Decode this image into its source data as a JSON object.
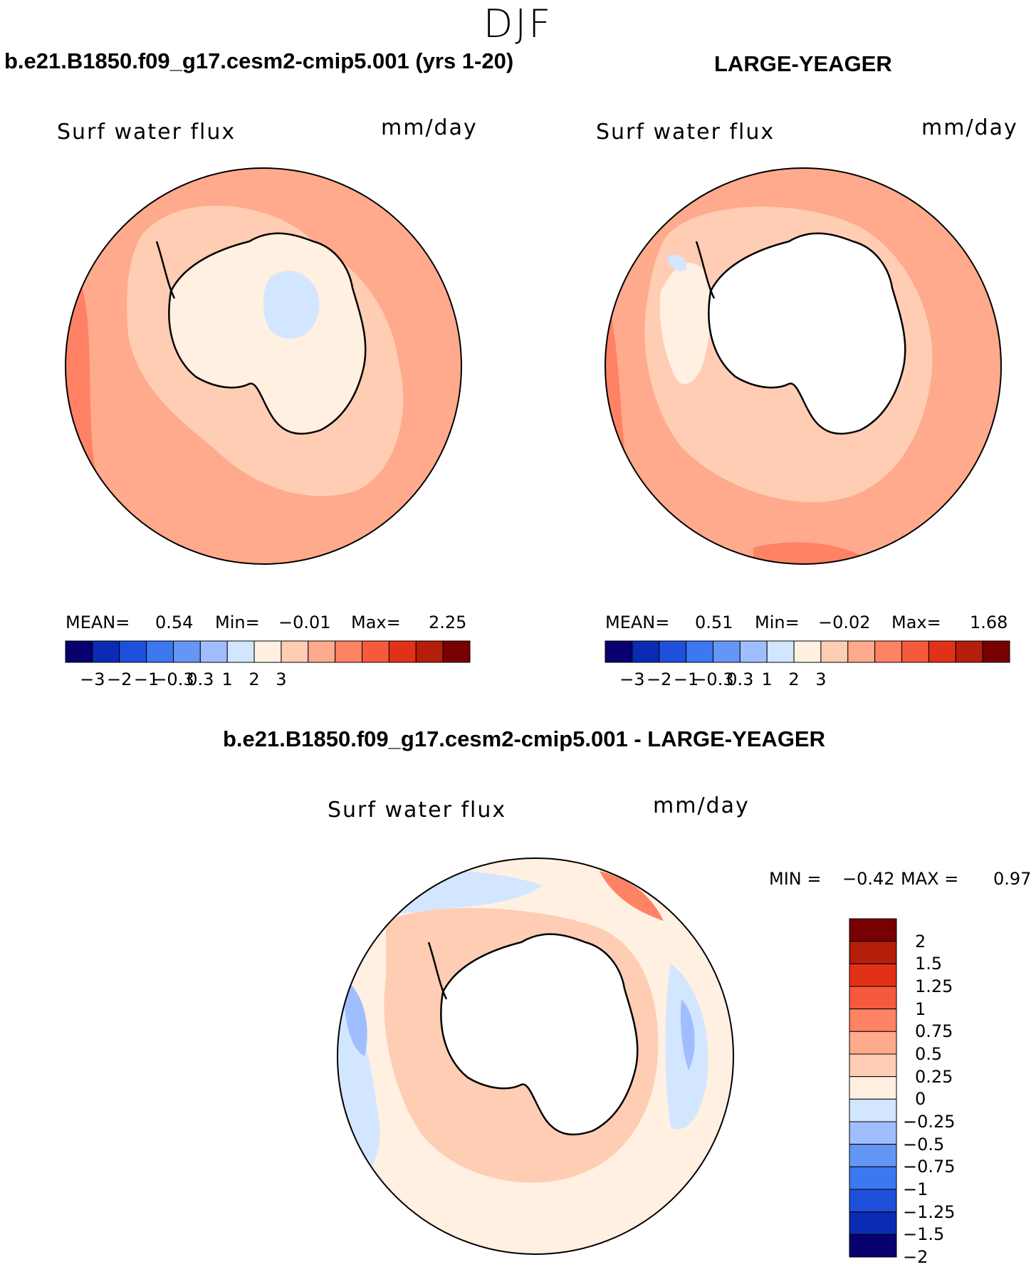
{
  "season": "DJF",
  "panels": [
    {
      "title": "b.e21.B1850.f09_g17.cesm2-cmip5.001 (yrs 1-20)",
      "variable_label": "Surf water flux",
      "units": "mm/day",
      "stats": {
        "mean_label": "MEAN=",
        "mean": "0.54",
        "min_label": "Min=",
        "min": "−0.01",
        "max_label": "Max=",
        "max": "2.25"
      },
      "colorbar_ticks": [
        "−3",
        "−2",
        "−1",
        "−0.3",
        "0.3",
        "1",
        "2",
        "3"
      ]
    },
    {
      "title": "LARGE-YEAGER",
      "variable_label": "Surf water flux",
      "units": "mm/day",
      "stats": {
        "mean_label": "MEAN=",
        "mean": "0.51",
        "min_label": "Min=",
        "min": "−0.02",
        "max_label": "Max=",
        "max": "1.68"
      },
      "colorbar_ticks": [
        "−3",
        "−2",
        "−1",
        "−0.3",
        "0.3",
        "1",
        "2",
        "3"
      ]
    },
    {
      "title": "b.e21.B1850.f09_g17.cesm2-cmip5.001 - LARGE-YEAGER",
      "variable_label": "Surf water flux",
      "units": "mm/day",
      "stats": {
        "min_label": "MIN =",
        "min": "−0.42",
        "max_label": "MAX =",
        "max": "0.97"
      },
      "colorbar_ticks": [
        "2",
        "1.5",
        "1.25",
        "1",
        "0.75",
        "0.5",
        "0.25",
        "0",
        "−0.25",
        "−0.5",
        "−0.75",
        "−1",
        "−1.25",
        "−1.5",
        "−2"
      ]
    }
  ],
  "colors": {
    "abs_scale": [
      "#08006e",
      "#0a2cb4",
      "#1e50dc",
      "#3c78f0",
      "#6496f5",
      "#a0beff",
      "#d2e6ff",
      "#fff0e1",
      "#ffcdb4",
      "#ffaa8c",
      "#ff8264",
      "#f55a3c",
      "#e13219",
      "#b41e0a",
      "#780000"
    ],
    "diff_scale": [
      "#780000",
      "#b41e0a",
      "#e13219",
      "#f55a3c",
      "#ff8264",
      "#ffaa8c",
      "#ffcdb4",
      "#fff0e1",
      "#d2e6ff",
      "#a0beff",
      "#6496f5",
      "#3c78f0",
      "#1e50dc",
      "#0a2cb4",
      "#08006e"
    ]
  }
}
